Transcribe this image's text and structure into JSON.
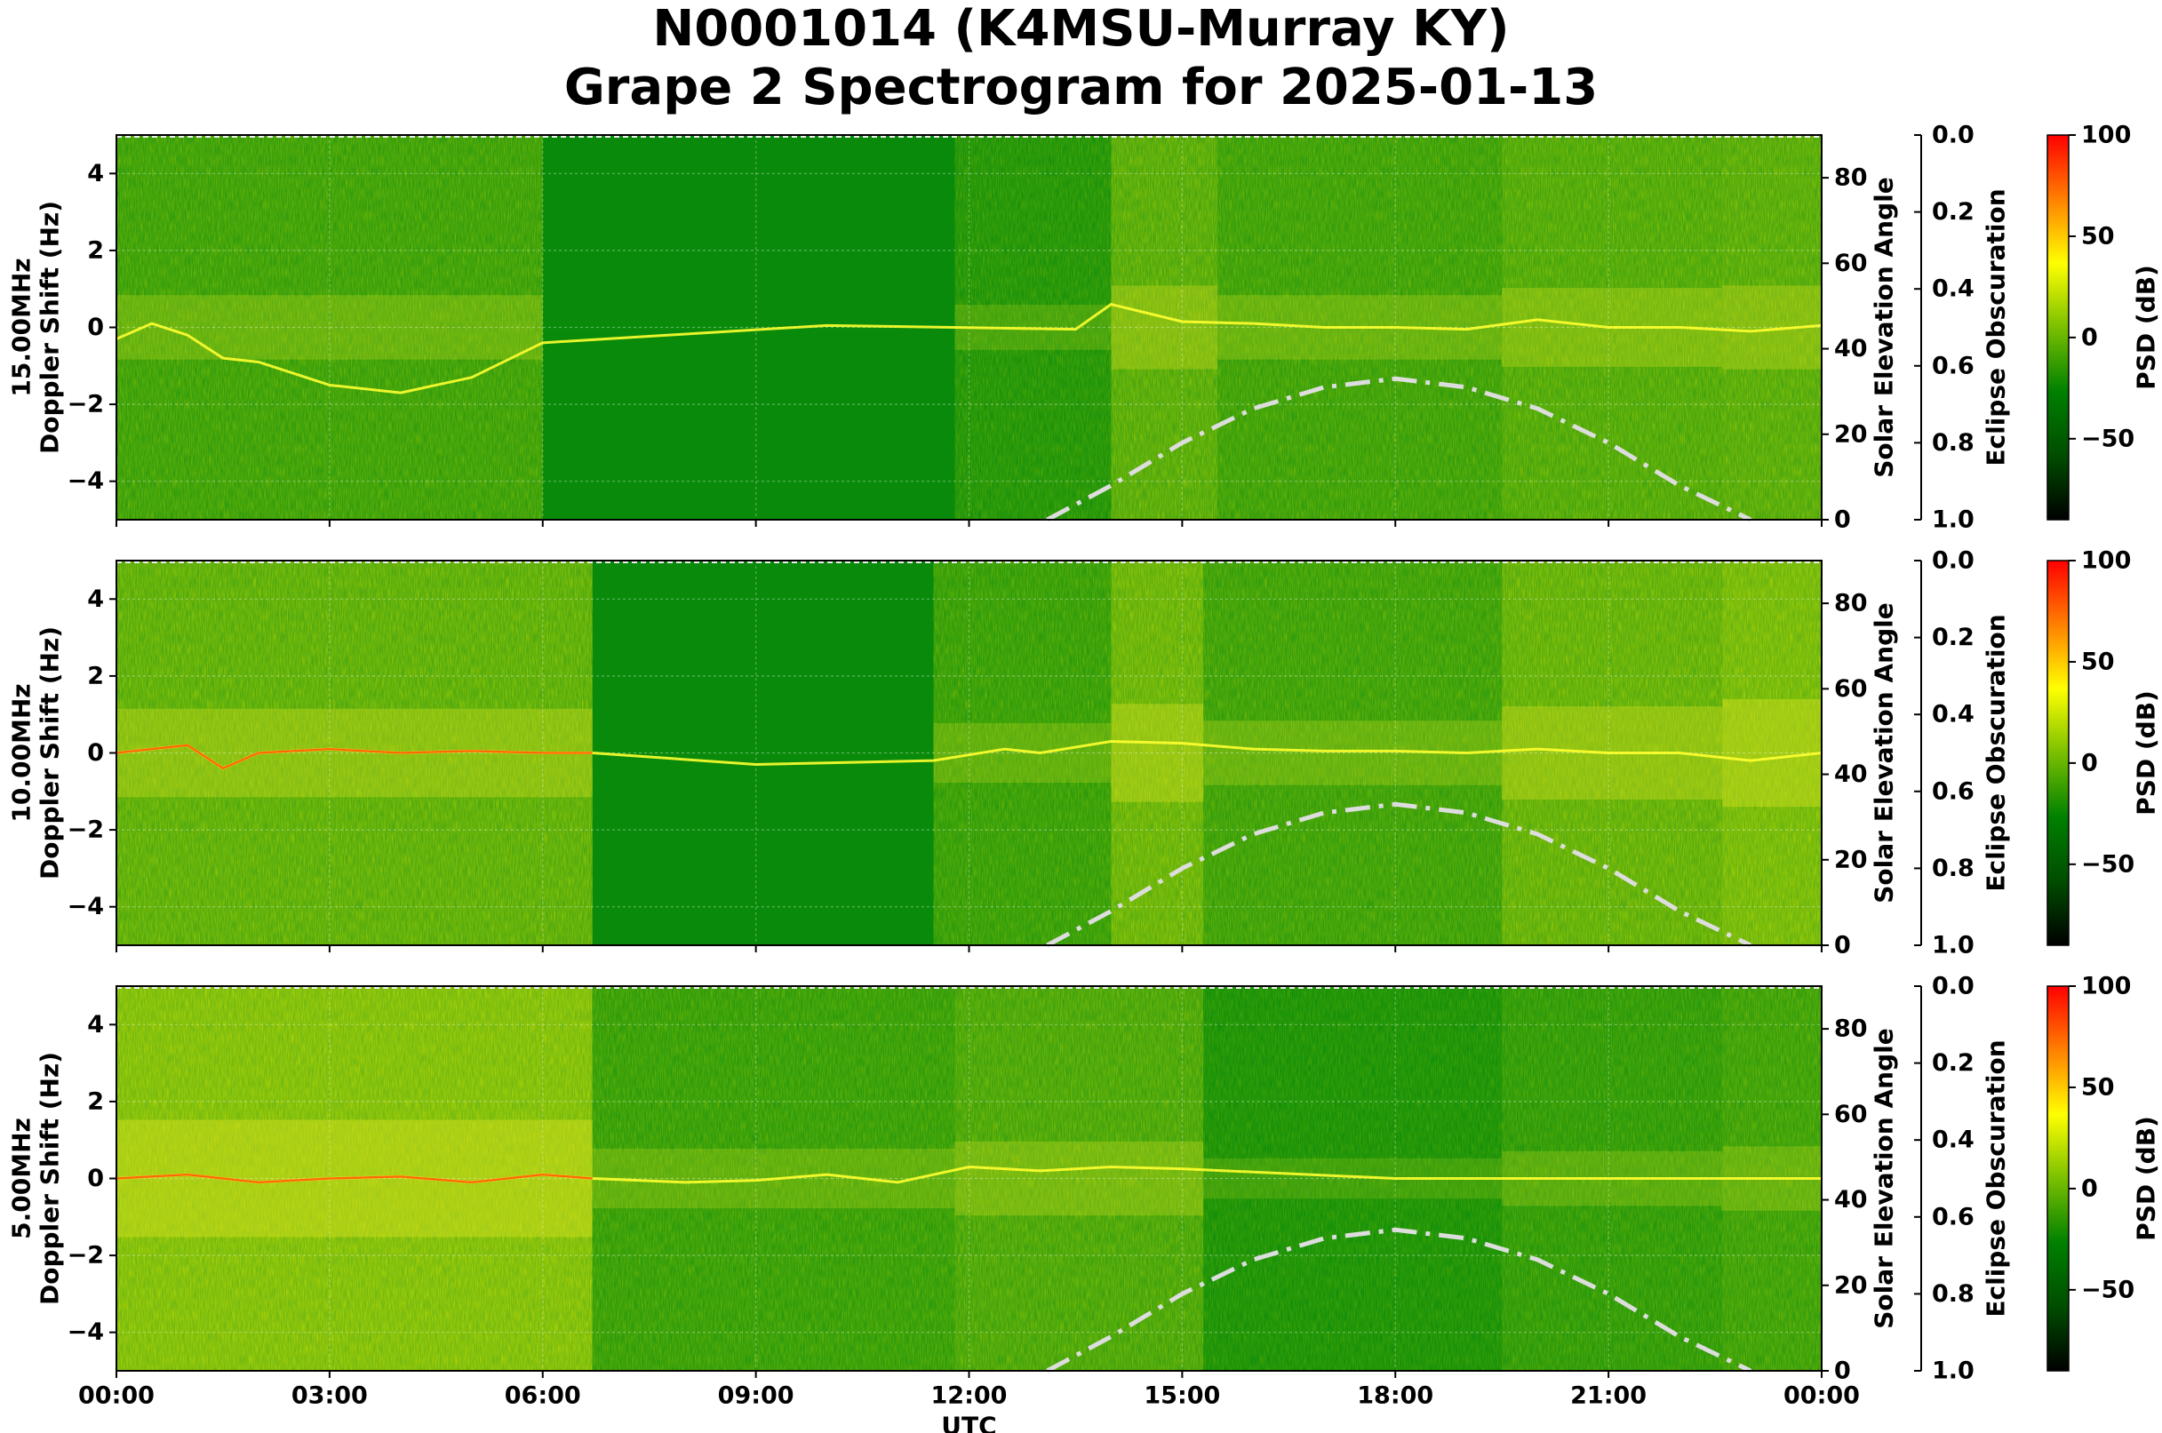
{
  "title": {
    "line1": "N0001014 (K4MSU-Murray KY)",
    "line2": "Grape 2 Spectrogram for 2025-01-13"
  },
  "chart_data": {
    "type": "heatmap",
    "x_axis": {
      "label": "UTC",
      "ticks": [
        "00:00",
        "03:00",
        "06:00",
        "09:00",
        "12:00",
        "15:00",
        "18:00",
        "21:00",
        "00:00"
      ],
      "range_hours": [
        0,
        24
      ]
    },
    "y_axis_right": {
      "label": "Solar Elevation Angle",
      "ticks": [
        "0",
        "20",
        "40",
        "60",
        "80"
      ],
      "range": [
        0,
        90
      ]
    },
    "eclipse_axis": {
      "label": "Eclipse Obscuration",
      "ticks": [
        "0.0",
        "0.2",
        "0.4",
        "0.6",
        "0.8",
        "1.0"
      ],
      "range": [
        0.0,
        1.0
      ],
      "inverted": true
    },
    "colorbar": {
      "label": "PSD (dB)",
      "ticks": [
        "100",
        "50",
        "0",
        "−50"
      ],
      "range": [
        -90,
        100
      ],
      "colormap": [
        "#000000",
        "#004d00",
        "#008000",
        "#7ac000",
        "#ffff00",
        "#ff8000",
        "#ff0000"
      ]
    },
    "solar_elevation_curve": {
      "style": "dash-dot",
      "color": "#dddddd",
      "hours": [
        13.1,
        14,
        15,
        16,
        17,
        18,
        19,
        20,
        21,
        22,
        23,
        23.0
      ],
      "elevation_deg": [
        0,
        8,
        18,
        26,
        31,
        33,
        31,
        26,
        18,
        8,
        0,
        0
      ]
    },
    "grid": true,
    "panels": [
      {
        "ylabel_line1": "15.00MHz",
        "ylabel_line2": "Doppler Shift (Hz)",
        "y_ticks": [
          "4",
          "2",
          "0",
          "−2",
          "−4"
        ],
        "ylim": [
          -5,
          5
        ],
        "background": "#0a8a0a",
        "activity": [
          {
            "start": 0.0,
            "end": 6.0,
            "level": 0.35
          },
          {
            "start": 11.8,
            "end": 14.0,
            "level": 0.15
          },
          {
            "start": 14.0,
            "end": 15.5,
            "level": 0.55
          },
          {
            "start": 15.5,
            "end": 19.5,
            "level": 0.35
          },
          {
            "start": 19.5,
            "end": 22.6,
            "level": 0.5
          },
          {
            "start": 22.6,
            "end": 24.0,
            "level": 0.55
          }
        ],
        "trace": {
          "hours": [
            0,
            0.5,
            1,
            1.5,
            2,
            3,
            4,
            5,
            6,
            10,
            13.5,
            14,
            15,
            16,
            17,
            18,
            19,
            20,
            21,
            22,
            23,
            24
          ],
          "doppler_hz": [
            -0.3,
            0.1,
            -0.2,
            -0.8,
            -0.9,
            -1.5,
            -1.7,
            -1.3,
            -0.4,
            0.05,
            -0.05,
            0.6,
            0.15,
            0.1,
            0.0,
            0.0,
            -0.05,
            0.2,
            0.0,
            0.0,
            -0.1,
            0.05
          ]
        }
      },
      {
        "ylabel_line1": "10.00MHz",
        "ylabel_line2": "Doppler Shift (Hz)",
        "y_ticks": [
          "4",
          "2",
          "0",
          "−2",
          "−4"
        ],
        "ylim": [
          -5,
          5
        ],
        "background": "#0a8a0a",
        "activity": [
          {
            "start": 0.0,
            "end": 6.7,
            "level": 0.6
          },
          {
            "start": 11.5,
            "end": 14.0,
            "level": 0.3
          },
          {
            "start": 14.0,
            "end": 15.3,
            "level": 0.7
          },
          {
            "start": 15.3,
            "end": 19.5,
            "level": 0.35
          },
          {
            "start": 19.5,
            "end": 22.6,
            "level": 0.65
          },
          {
            "start": 22.6,
            "end": 24.0,
            "level": 0.8
          }
        ],
        "trace": {
          "hours": [
            0,
            0.5,
            1,
            1.5,
            2,
            3,
            4,
            5,
            6,
            6.7,
            9,
            11.5,
            12.5,
            13,
            14,
            15,
            16,
            17,
            18,
            19,
            20,
            21,
            22,
            23,
            24
          ],
          "doppler_hz": [
            0.0,
            0.1,
            0.2,
            -0.4,
            0.0,
            0.1,
            0.0,
            0.05,
            0.0,
            0.0,
            -0.3,
            -0.2,
            0.1,
            0.0,
            0.3,
            0.25,
            0.1,
            0.05,
            0.05,
            0.0,
            0.1,
            0.0,
            0.0,
            -0.2,
            0.0
          ]
        }
      },
      {
        "ylabel_line1": "5.00MHz",
        "ylabel_line2": "Doppler Shift (Hz)",
        "y_ticks": [
          "4",
          "2",
          "0",
          "−2",
          "−4"
        ],
        "ylim": [
          -5,
          5
        ],
        "background": "#0a8a0a",
        "activity": [
          {
            "start": 0.0,
            "end": 6.7,
            "level": 0.9
          },
          {
            "start": 6.7,
            "end": 11.8,
            "level": 0.3
          },
          {
            "start": 11.8,
            "end": 15.3,
            "level": 0.45
          },
          {
            "start": 15.3,
            "end": 19.5,
            "level": 0.1
          },
          {
            "start": 19.5,
            "end": 22.6,
            "level": 0.25
          },
          {
            "start": 22.6,
            "end": 24.0,
            "level": 0.35
          }
        ],
        "trace": {
          "hours": [
            0,
            1,
            2,
            3,
            4,
            5,
            6,
            6.7,
            8,
            9,
            10,
            11,
            12,
            13,
            14,
            15,
            18,
            21,
            24
          ],
          "doppler_hz": [
            0.0,
            0.1,
            -0.1,
            0.0,
            0.05,
            -0.1,
            0.1,
            0.0,
            -0.1,
            -0.05,
            0.1,
            -0.1,
            0.3,
            0.2,
            0.3,
            0.25,
            0.0,
            0.0,
            0.0
          ]
        }
      }
    ]
  }
}
